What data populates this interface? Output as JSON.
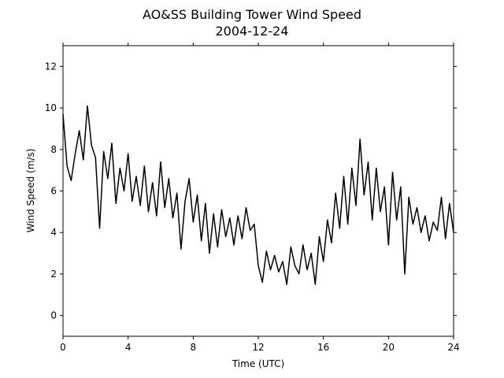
{
  "chart_data": {
    "type": "line",
    "title": "AO&SS Building Tower Wind Speed",
    "subtitle": "2004-12-24",
    "xlabel": "Time (UTC)",
    "ylabel": "Wind Speed (m/s)",
    "xlim": [
      0,
      24
    ],
    "xticks": [
      0,
      4,
      8,
      12,
      16,
      20,
      24
    ],
    "ylim": [
      -1,
      13
    ],
    "yticks": [
      0,
      2,
      4,
      6,
      8,
      10,
      12
    ],
    "x": [
      0,
      0.25,
      0.5,
      0.75,
      1,
      1.25,
      1.5,
      1.75,
      2,
      2.25,
      2.5,
      2.75,
      3,
      3.25,
      3.5,
      3.75,
      4,
      4.25,
      4.5,
      4.75,
      5,
      5.25,
      5.5,
      5.75,
      6,
      6.25,
      6.5,
      6.75,
      7,
      7.25,
      7.5,
      7.75,
      8,
      8.25,
      8.5,
      8.75,
      9,
      9.25,
      9.5,
      9.75,
      10,
      10.25,
      10.5,
      10.75,
      11,
      11.25,
      11.5,
      11.75,
      12,
      12.25,
      12.5,
      12.75,
      13,
      13.25,
      13.5,
      13.75,
      14,
      14.25,
      14.5,
      14.75,
      15,
      15.25,
      15.5,
      15.75,
      16,
      16.25,
      16.5,
      16.75,
      17,
      17.25,
      17.5,
      17.75,
      18,
      18.25,
      18.5,
      18.75,
      19,
      19.25,
      19.5,
      19.75,
      20,
      20.25,
      20.5,
      20.75,
      21,
      21.25,
      21.5,
      21.75,
      22,
      22.25,
      22.5,
      22.75,
      23,
      23.25,
      23.5,
      23.75,
      24
    ],
    "series": [
      {
        "name": "Wind Speed",
        "color": "#000000",
        "values": [
          9.7,
          7.2,
          6.5,
          7.8,
          8.9,
          7.5,
          10.1,
          8.2,
          7.6,
          4.2,
          7.9,
          6.6,
          8.3,
          5.4,
          7.1,
          6.0,
          7.8,
          5.5,
          6.7,
          5.3,
          7.2,
          5.0,
          6.4,
          4.8,
          7.4,
          5.2,
          6.6,
          4.7,
          5.9,
          3.2,
          5.5,
          6.6,
          4.5,
          5.8,
          3.6,
          5.4,
          3.0,
          4.9,
          3.3,
          5.1,
          3.8,
          4.7,
          3.4,
          4.8,
          3.7,
          5.2,
          4.1,
          4.4,
          2.4,
          1.6,
          3.1,
          2.2,
          2.9,
          2.1,
          2.6,
          1.5,
          3.3,
          2.4,
          2.0,
          3.4,
          2.2,
          3.0,
          1.5,
          3.8,
          2.6,
          4.6,
          3.5,
          5.9,
          4.2,
          6.7,
          4.4,
          7.1,
          5.3,
          8.5,
          5.8,
          7.4,
          4.6,
          7.1,
          5.0,
          6.2,
          3.4,
          6.9,
          4.6,
          6.2,
          2.0,
          5.7,
          4.4,
          5.2,
          4.0,
          4.8,
          3.6,
          4.5,
          4.1,
          5.7,
          3.7,
          5.4,
          4.0
        ]
      }
    ]
  }
}
